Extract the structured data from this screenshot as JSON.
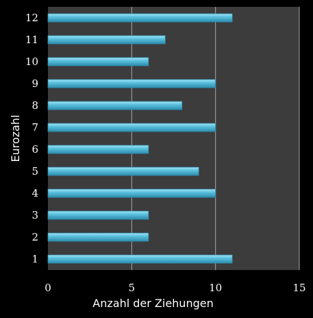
{
  "chart_data": {
    "type": "bar",
    "orientation": "horizontal",
    "categories": [
      "1",
      "2",
      "3",
      "4",
      "5",
      "6",
      "7",
      "8",
      "9",
      "10",
      "11",
      "12"
    ],
    "values": [
      11,
      6,
      6,
      10,
      9,
      6,
      10,
      8,
      10,
      6,
      7,
      11
    ],
    "title": "",
    "xlabel": "Anzahl der Ziehungen",
    "ylabel": "Eurozahl",
    "xlim": [
      0,
      15
    ],
    "x_ticks": [
      "0",
      "5",
      "10",
      "15"
    ],
    "grid": "vertical",
    "legend": "none",
    "colors": {
      "background": "#000000",
      "plot_area": "#3c3c3c",
      "grid": "#a8a8a8",
      "bar": "#5ec4e0",
      "bar_highlight": "#a8e4f4",
      "bar_shadow": "#2d8cae",
      "text": "#ffffff"
    }
  }
}
